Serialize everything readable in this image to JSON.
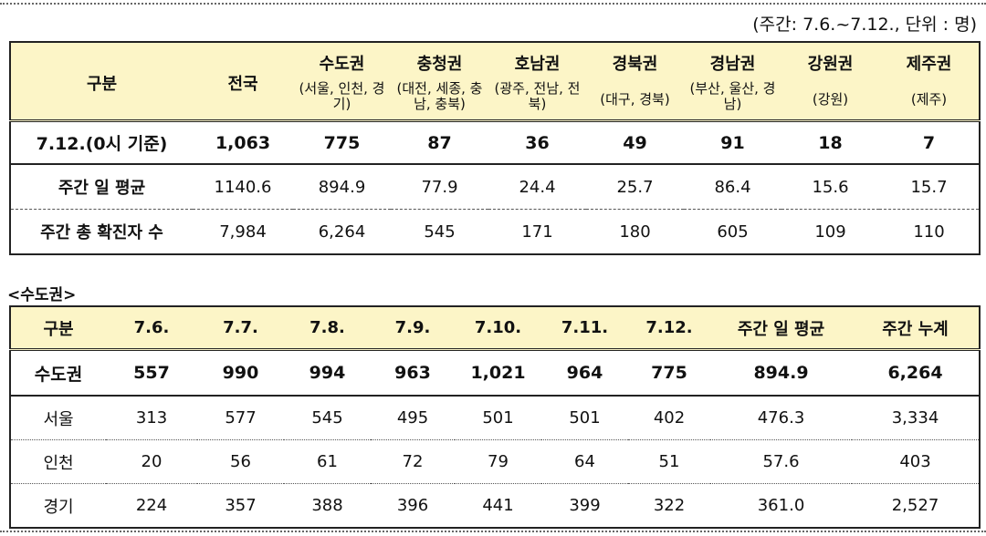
{
  "unit_note": "(주간: 7.6.~7.12., 단위 : 명)",
  "table1": {
    "header_category": "구분",
    "header_national": "전국",
    "regions": [
      {
        "name": "수도권",
        "sub": "(서울, 인천, 경기)"
      },
      {
        "name": "충청권",
        "sub": "(대전, 세종, 충남, 충북)"
      },
      {
        "name": "호남권",
        "sub": "(광주, 전남, 전북)"
      },
      {
        "name": "경북권",
        "sub": "(대구, 경북)"
      },
      {
        "name": "경남권",
        "sub": "(부산, 울산, 경남)"
      },
      {
        "name": "강원권",
        "sub": "(강원)"
      },
      {
        "name": "제주권",
        "sub": "(제주)"
      }
    ],
    "rows": [
      {
        "label": "7.12.(0시 기준)",
        "values": [
          "1,063",
          "775",
          "87",
          "36",
          "49",
          "91",
          "18",
          "7"
        ]
      },
      {
        "label": "주간 일 평균",
        "values": [
          "1140.6",
          "894.9",
          "77.9",
          "24.4",
          "25.7",
          "86.4",
          "15.6",
          "15.7"
        ]
      },
      {
        "label": "주간 총 확진자 수",
        "values": [
          "7,984",
          "6,264",
          "545",
          "171",
          "180",
          "605",
          "109",
          "110"
        ]
      }
    ]
  },
  "section2_title": "<수도권>",
  "table2": {
    "headers": [
      "구분",
      "7.6.",
      "7.7.",
      "7.8.",
      "7.9.",
      "7.10.",
      "7.11.",
      "7.12.",
      "주간 일 평균",
      "주간 누계"
    ],
    "rows": [
      {
        "label": "수도권",
        "values": [
          "557",
          "990",
          "994",
          "963",
          "1,021",
          "964",
          "775",
          "894.9",
          "6,264"
        ]
      },
      {
        "label": "서울",
        "values": [
          "313",
          "577",
          "545",
          "495",
          "501",
          "501",
          "402",
          "476.3",
          "3,334"
        ]
      },
      {
        "label": "인천",
        "values": [
          "20",
          "56",
          "61",
          "72",
          "79",
          "64",
          "51",
          "57.6",
          "403"
        ]
      },
      {
        "label": "경기",
        "values": [
          "224",
          "357",
          "388",
          "396",
          "441",
          "399",
          "322",
          "361.0",
          "2,527"
        ]
      }
    ]
  }
}
